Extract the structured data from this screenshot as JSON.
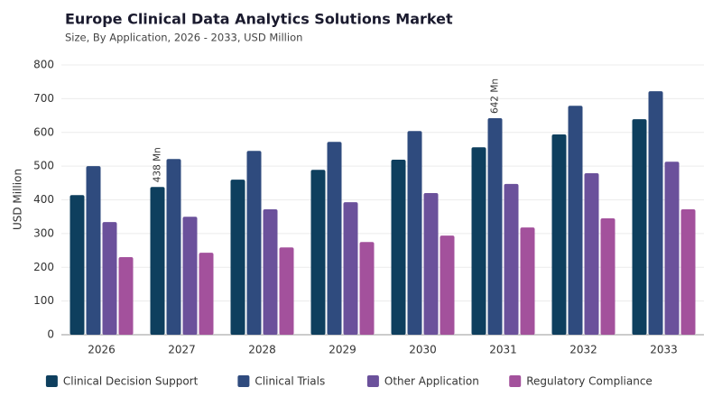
{
  "chart_data": {
    "type": "bar",
    "title": "Europe Clinical Data Analytics Solutions Market",
    "subtitle": "Size, By Application, 2026 - 2033, USD Million",
    "y_label": "USD Million",
    "categories": [
      "2026",
      "2027",
      "2028",
      "2029",
      "2030",
      "2031",
      "2032",
      "2033"
    ],
    "series": [
      {
        "name": "Clinical Decision Support",
        "color": "#0e3f5e",
        "values": [
          414,
          438,
          460,
          489,
          519,
          556,
          594,
          639
        ],
        "value_labels": [
          null,
          "438 Mn",
          null,
          null,
          null,
          null,
          null,
          null
        ]
      },
      {
        "name": "Clinical Trials",
        "color": "#2f4b7e",
        "values": [
          500,
          521,
          545,
          572,
          604,
          642,
          679,
          722
        ],
        "value_labels": [
          null,
          null,
          null,
          null,
          null,
          "642 Mn",
          null,
          null
        ]
      },
      {
        "name": "Other Application",
        "color": "#6b519b",
        "values": [
          334,
          350,
          372,
          393,
          420,
          447,
          479,
          513
        ]
      },
      {
        "name": "Regulatory Compliance",
        "color": "#a3519c",
        "values": [
          230,
          243,
          259,
          275,
          294,
          318,
          345,
          372
        ]
      }
    ],
    "ylim": [
      0,
      800
    ],
    "yticks": [
      0,
      100,
      200,
      300,
      400,
      500,
      600,
      700,
      800
    ],
    "grid": true
  }
}
